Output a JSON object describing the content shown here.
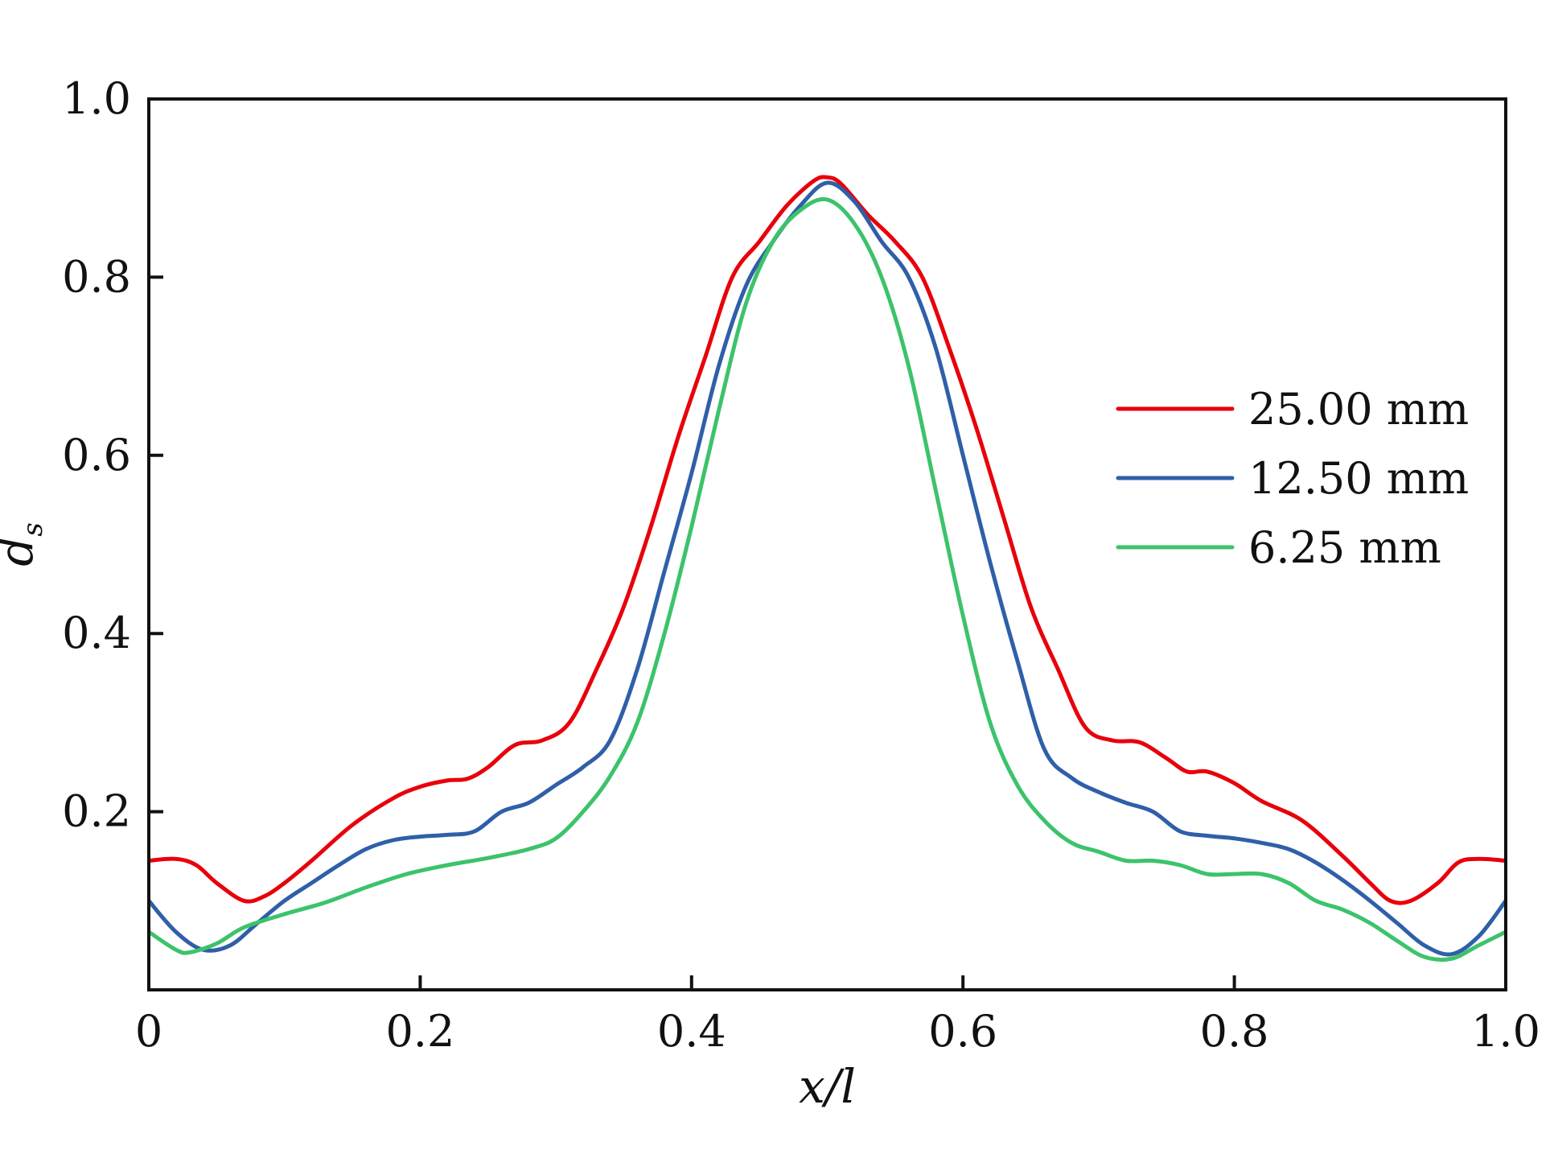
{
  "chart_data": {
    "type": "line",
    "xlabel": "x/l",
    "ylabel": "d",
    "ylabel_subscript": "s",
    "xlim": [
      0,
      1
    ],
    "ylim": [
      0,
      1
    ],
    "x_ticks": [
      0,
      0.2,
      0.4,
      0.6,
      0.8,
      1.0
    ],
    "x_tick_labels": [
      "0",
      "0.2",
      "0.4",
      "0.6",
      "0.8",
      "1.0"
    ],
    "y_ticks": [
      0.2,
      0.4,
      0.6,
      0.8,
      1.0
    ],
    "y_tick_labels": [
      "0.2",
      "0.4",
      "0.6",
      "0.8",
      "1.0"
    ],
    "grid": false,
    "legend_position": "right",
    "series": [
      {
        "name": "25.00 mm",
        "color": "#e8000b",
        "x": [
          0,
          0.02,
          0.035,
          0.05,
          0.07,
          0.085,
          0.1,
          0.12,
          0.15,
          0.18,
          0.2,
          0.22,
          0.235,
          0.25,
          0.27,
          0.29,
          0.31,
          0.33,
          0.35,
          0.37,
          0.39,
          0.41,
          0.43,
          0.45,
          0.47,
          0.49,
          0.5,
          0.51,
          0.53,
          0.55,
          0.57,
          0.59,
          0.61,
          0.63,
          0.65,
          0.67,
          0.69,
          0.71,
          0.73,
          0.75,
          0.765,
          0.78,
          0.8,
          0.82,
          0.85,
          0.88,
          0.9,
          0.915,
          0.93,
          0.95,
          0.965,
          0.98,
          1.0
        ],
        "y": [
          0.145,
          0.147,
          0.14,
          0.12,
          0.1,
          0.105,
          0.12,
          0.145,
          0.185,
          0.215,
          0.228,
          0.235,
          0.237,
          0.25,
          0.275,
          0.28,
          0.3,
          0.36,
          0.43,
          0.52,
          0.62,
          0.71,
          0.8,
          0.84,
          0.88,
          0.908,
          0.912,
          0.905,
          0.87,
          0.84,
          0.8,
          0.72,
          0.63,
          0.53,
          0.43,
          0.36,
          0.295,
          0.28,
          0.278,
          0.26,
          0.245,
          0.245,
          0.232,
          0.212,
          0.19,
          0.15,
          0.12,
          0.1,
          0.1,
          0.12,
          0.143,
          0.147,
          0.145
        ]
      },
      {
        "name": "12.50 mm",
        "color": "#2f5fa8",
        "x": [
          0,
          0.02,
          0.04,
          0.06,
          0.08,
          0.1,
          0.12,
          0.14,
          0.16,
          0.18,
          0.2,
          0.22,
          0.24,
          0.26,
          0.28,
          0.3,
          0.32,
          0.34,
          0.36,
          0.38,
          0.4,
          0.42,
          0.44,
          0.46,
          0.48,
          0.5,
          0.52,
          0.54,
          0.56,
          0.58,
          0.6,
          0.62,
          0.64,
          0.66,
          0.68,
          0.7,
          0.72,
          0.74,
          0.76,
          0.78,
          0.8,
          0.82,
          0.84,
          0.86,
          0.88,
          0.9,
          0.92,
          0.94,
          0.96,
          0.98,
          1.0
        ],
        "y": [
          0.1,
          0.065,
          0.045,
          0.05,
          0.075,
          0.1,
          0.12,
          0.14,
          0.158,
          0.168,
          0.172,
          0.174,
          0.178,
          0.2,
          0.21,
          0.23,
          0.25,
          0.28,
          0.36,
          0.47,
          0.58,
          0.7,
          0.79,
          0.84,
          0.88,
          0.906,
          0.885,
          0.84,
          0.8,
          0.72,
          0.6,
          0.48,
          0.37,
          0.27,
          0.238,
          0.222,
          0.21,
          0.2,
          0.178,
          0.173,
          0.17,
          0.165,
          0.158,
          0.143,
          0.123,
          0.1,
          0.075,
          0.05,
          0.04,
          0.06,
          0.1
        ]
      },
      {
        "name": "6.25 mm",
        "color": "#3cc36b",
        "x": [
          0,
          0.02,
          0.03,
          0.05,
          0.07,
          0.1,
          0.13,
          0.16,
          0.19,
          0.22,
          0.25,
          0.28,
          0.3,
          0.32,
          0.34,
          0.36,
          0.38,
          0.4,
          0.42,
          0.44,
          0.46,
          0.48,
          0.5,
          0.52,
          0.54,
          0.56,
          0.58,
          0.6,
          0.62,
          0.64,
          0.66,
          0.68,
          0.7,
          0.72,
          0.74,
          0.76,
          0.78,
          0.8,
          0.82,
          0.84,
          0.86,
          0.88,
          0.9,
          0.92,
          0.94,
          0.96,
          0.98,
          1.0
        ],
        "y": [
          0.065,
          0.045,
          0.042,
          0.052,
          0.07,
          0.085,
          0.098,
          0.115,
          0.13,
          0.14,
          0.148,
          0.158,
          0.17,
          0.2,
          0.24,
          0.3,
          0.4,
          0.52,
          0.65,
          0.77,
          0.84,
          0.875,
          0.887,
          0.86,
          0.8,
          0.7,
          0.56,
          0.42,
          0.3,
          0.23,
          0.19,
          0.165,
          0.155,
          0.145,
          0.145,
          0.14,
          0.13,
          0.13,
          0.13,
          0.12,
          0.1,
          0.09,
          0.075,
          0.055,
          0.037,
          0.035,
          0.05,
          0.065
        ]
      }
    ]
  }
}
